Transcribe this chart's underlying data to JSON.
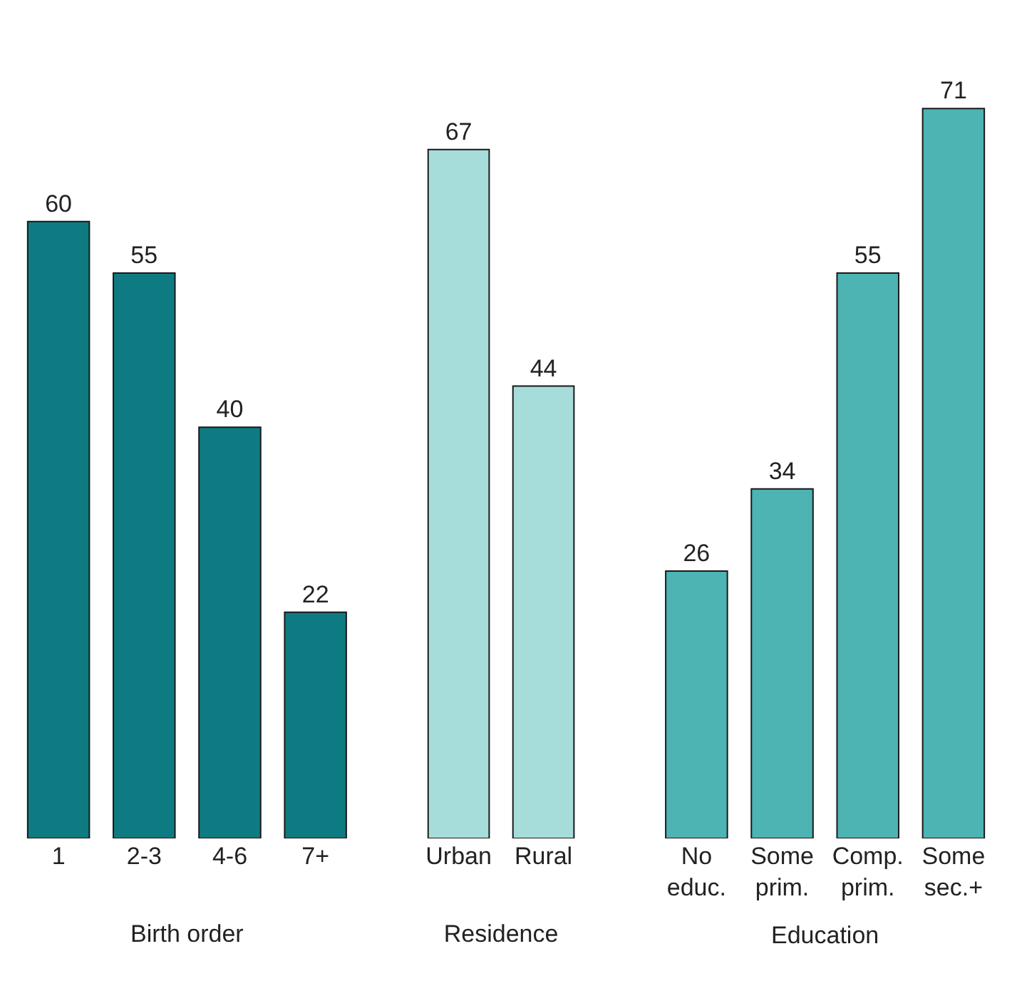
{
  "chart_data": [
    {
      "type": "bar",
      "xlabel": "Birth order",
      "categories": [
        "1",
        "2-3",
        "4-6",
        "7+"
      ],
      "values": [
        60,
        55,
        40,
        22
      ],
      "color": "#0e7b82",
      "data_labels": true,
      "tick_labels": "x"
    },
    {
      "type": "bar",
      "xlabel": "Residence",
      "categories": [
        "Urban",
        "Rural"
      ],
      "values": [
        67,
        44
      ],
      "color": "#a6dcd9",
      "data_labels": true,
      "tick_labels": "x"
    },
    {
      "type": "bar",
      "xlabel": "Education",
      "categories": [
        "No\neduc.",
        "Some\nprim.",
        "Comp.\nprim.",
        "Some\nsec.+"
      ],
      "values": [
        26,
        34,
        55,
        71
      ],
      "color": "#4db3b3",
      "data_labels": true,
      "tick_labels": "x"
    }
  ]
}
